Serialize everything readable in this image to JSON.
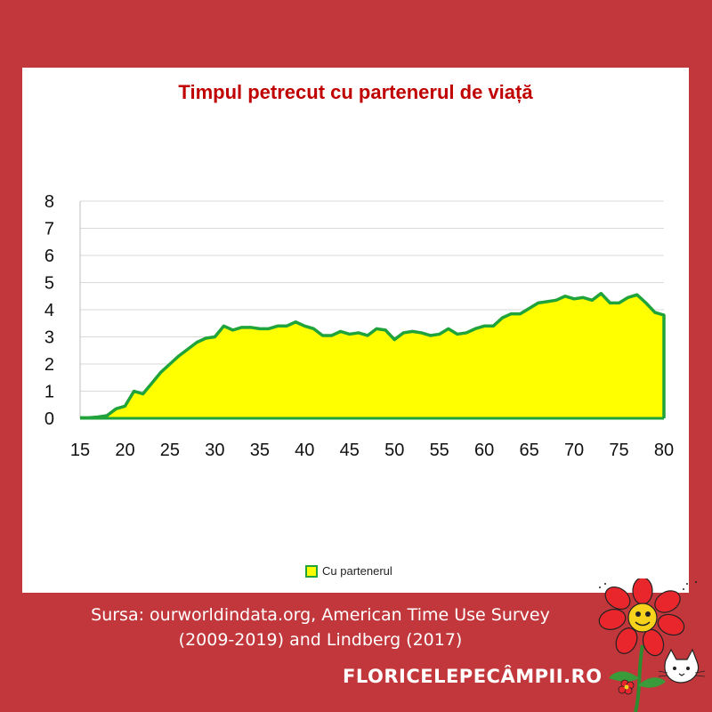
{
  "chart_data": {
    "type": "area",
    "title": "Timpul petrecut cu partenerul de viață",
    "xlabel": "",
    "ylabel": "",
    "xlim": [
      15,
      80
    ],
    "ylim": [
      0,
      8
    ],
    "x_ticks": [
      "15",
      "20",
      "25",
      "30",
      "35",
      "40",
      "45",
      "50",
      "55",
      "60",
      "65",
      "70",
      "75",
      "80"
    ],
    "y_ticks": [
      "0",
      "1",
      "2",
      "3",
      "4",
      "5",
      "6",
      "7",
      "8"
    ],
    "grid": "horizontal",
    "legend": "bottom",
    "series": [
      {
        "name": "Cu partenerul",
        "x": [
          15,
          16,
          17,
          18,
          19,
          20,
          21,
          22,
          23,
          24,
          25,
          26,
          27,
          28,
          29,
          30,
          31,
          32,
          33,
          34,
          35,
          36,
          37,
          38,
          39,
          40,
          41,
          42,
          43,
          44,
          45,
          46,
          47,
          48,
          49,
          50,
          51,
          52,
          53,
          54,
          55,
          56,
          57,
          58,
          59,
          60,
          61,
          62,
          63,
          64,
          65,
          66,
          67,
          68,
          69,
          70,
          71,
          72,
          73,
          74,
          75,
          76,
          77,
          78,
          79,
          80
        ],
        "values": [
          0.02,
          0.02,
          0.05,
          0.1,
          0.35,
          0.45,
          1.0,
          0.9,
          1.3,
          1.7,
          2.0,
          2.3,
          2.55,
          2.8,
          2.95,
          3.0,
          3.4,
          3.25,
          3.35,
          3.35,
          3.3,
          3.3,
          3.4,
          3.4,
          3.55,
          3.4,
          3.3,
          3.05,
          3.05,
          3.2,
          3.1,
          3.15,
          3.05,
          3.3,
          3.25,
          2.9,
          3.15,
          3.2,
          3.15,
          3.05,
          3.1,
          3.3,
          3.1,
          3.15,
          3.3,
          3.4,
          3.4,
          3.7,
          3.85,
          3.85,
          4.05,
          4.25,
          4.3,
          4.35,
          4.5,
          4.4,
          4.45,
          4.35,
          4.6,
          4.25,
          4.25,
          4.45,
          4.55,
          4.25,
          3.9,
          3.8
        ]
      }
    ],
    "colors": {
      "fill": "#ffff00",
      "line": "#1fa33a",
      "grid": "#d9d9d9"
    }
  },
  "source": {
    "line1": "Sursa: ourworldindata.org, American Time Use Survey",
    "line2": "(2009-2019) and Lindberg (2017)"
  },
  "brand": "FLORICELEPECÂMPII.RO",
  "theme": {
    "background": "#c2373b",
    "title_color": "#c00000"
  },
  "logo_icon": "red-flower-and-cat-icon"
}
